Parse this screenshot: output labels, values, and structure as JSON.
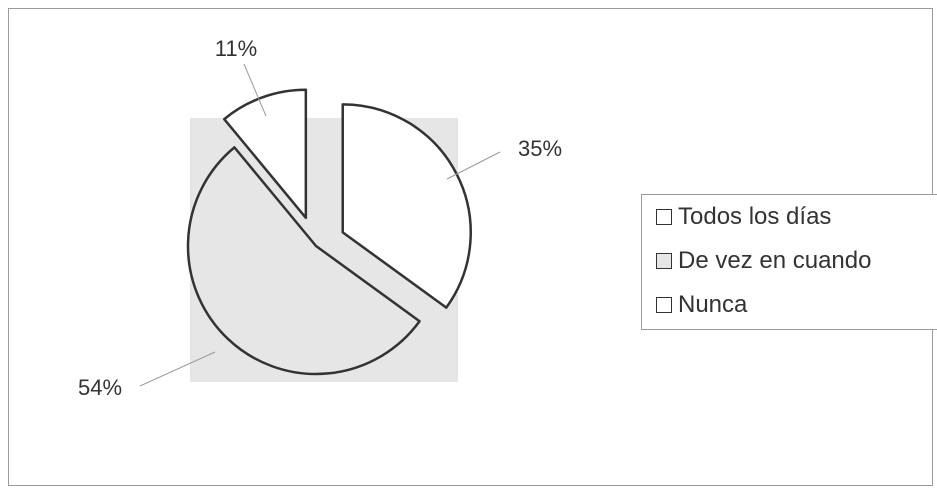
{
  "chart_data": {
    "type": "pie",
    "title": "",
    "categories": [
      "Todos los días",
      "De vez en cuando",
      "Nunca"
    ],
    "values": [
      35,
      54,
      11
    ],
    "data_labels": [
      "35%",
      "54%",
      "11%"
    ],
    "legend_position": "right",
    "exploded": true,
    "colors": [
      "#ffffff",
      "#e6e6e6",
      "#ffffff"
    ],
    "plot_area_fill": "#e6e6e6",
    "outline_color": "#333333"
  }
}
